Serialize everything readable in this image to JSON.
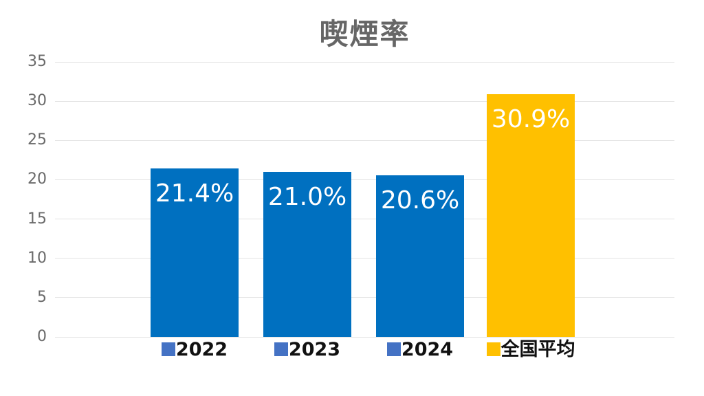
{
  "title": "喫煙率",
  "chart_data": {
    "type": "bar",
    "title": "喫煙率",
    "categories": [
      "2022",
      "2023",
      "2024",
      "全国平均"
    ],
    "values": [
      21.4,
      21.0,
      20.6,
      30.9
    ],
    "value_labels": [
      "21.4%",
      "21.0%",
      "20.6%",
      "30.9%"
    ],
    "bar_colors": [
      "#0070C0",
      "#0070C0",
      "#0070C0",
      "#FFC000"
    ],
    "marker_colors": [
      "#4472C4",
      "#4472C4",
      "#4472C4",
      "#FFC000"
    ],
    "xlabel": "",
    "ylabel": "",
    "ylim": [
      0,
      35
    ],
    "yticks": [
      0,
      5,
      10,
      15,
      20,
      25,
      30,
      35
    ],
    "grid": true,
    "legend_position": "below-bars-inline",
    "value_label_position": "inside-top",
    "value_label_color": "#FFFFFF"
  },
  "colors": {
    "background": "#FFFFFF",
    "title_text": "#666666",
    "axis_text": "#6A6A6A",
    "gridline": "#E2E2E2",
    "category_text": "#111111",
    "bar_blue": "#0070C0",
    "bar_gold": "#FFC000",
    "marker_blue": "#4472C4"
  }
}
